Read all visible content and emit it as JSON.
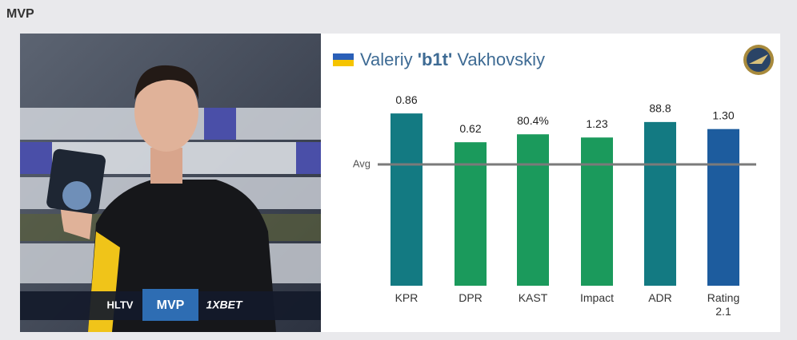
{
  "header": {
    "title": "MVP"
  },
  "player": {
    "first_name": "Valeriy",
    "nickname": "'b1t'",
    "last_name": "Vakhovskiy"
  },
  "photo_strip": {
    "left": "HLTV",
    "center": "MVP",
    "right": "1XBET"
  },
  "chart_data": {
    "type": "bar",
    "categories": [
      "KPR",
      "DPR",
      "KAST",
      "Impact",
      "ADR",
      "Rating 2.1"
    ],
    "values": [
      0.86,
      0.62,
      80.4,
      1.23,
      88.8,
      1.3
    ],
    "value_labels": [
      "0.86",
      "0.62",
      "80.4%",
      "1.23",
      "88.8",
      "1.30"
    ],
    "colors": [
      "#137a82",
      "#1b9a5c",
      "#1b9a5c",
      "#1b9a5c",
      "#137a82",
      "#1d5c9e"
    ],
    "reference_label": "Avg"
  }
}
